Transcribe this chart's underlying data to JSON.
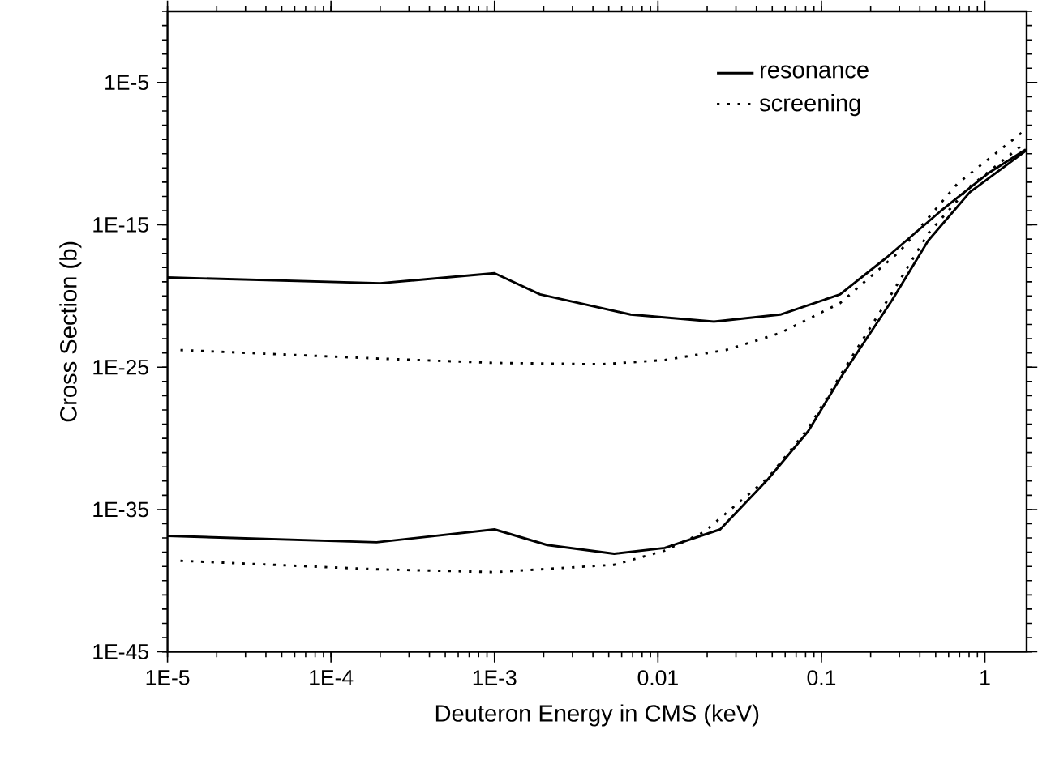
{
  "chart_data": {
    "type": "line",
    "xlabel": "Deuteron Energy in CMS (keV)",
    "ylabel": "Cross Section (b)",
    "log": "xy",
    "legend": "top right",
    "grid": false,
    "marker": "none",
    "xlim": [
      1e-05,
      1.8
    ],
    "ylim": [
      1e-45,
      1
    ],
    "xticks": [
      {
        "value": 1e-05,
        "label": "1E-5"
      },
      {
        "value": 0.0001,
        "label": "1E-4"
      },
      {
        "value": 0.001,
        "label": "1E-3"
      },
      0.01,
      0.1,
      1
    ],
    "yticks": [
      {
        "value": 1e-45,
        "label": "1E-45"
      },
      {
        "value": 1e-35,
        "label": "1E-35"
      },
      {
        "value": 1e-25,
        "label": "1E-25"
      },
      {
        "value": 1e-15,
        "label": "1E-15"
      },
      {
        "value": 1e-05,
        "label": "1E-5"
      }
    ],
    "series": [
      {
        "name": "resonance",
        "color": "#000000",
        "line_style": "solid",
        "x": [
          1e-05,
          0.0002,
          0.001,
          0.0019,
          0.0068,
          0.022,
          0.056,
          0.13,
          0.25,
          0.54,
          1.04,
          1.78
        ],
        "values": [
          2e-19,
          7.9e-20,
          4e-19,
          1.3e-20,
          5e-22,
          1.6e-22,
          5e-22,
          1.3e-20,
          5e-18,
          1e-14,
          4e-12,
          2e-10
        ]
      },
      {
        "color": "#000000",
        "line_style": "solid",
        "x": [
          1e-05,
          0.00019,
          0.001,
          0.0021,
          0.0054,
          0.011,
          0.024,
          0.047,
          0.083,
          0.13,
          0.27,
          0.45,
          0.81,
          1.78
        ],
        "values": [
          1.4e-37,
          5e-38,
          4e-37,
          3.2e-38,
          7.9e-39,
          2e-38,
          4e-37,
          1.3e-33,
          3.2e-30,
          1.6e-26,
          5e-21,
          7.9e-17,
          2e-13,
          1.6e-10
        ]
      },
      {
        "name": "screening",
        "color": "#000000",
        "line_style": "dotted",
        "x": [
          1.2e-05,
          0.0002,
          0.001,
          0.0045,
          0.011,
          0.026,
          0.056,
          0.13,
          0.3,
          0.68,
          1.78
        ],
        "values": [
          1.6e-24,
          4e-25,
          2e-25,
          1.6e-25,
          3.2e-25,
          1.6e-24,
          2.5e-23,
          3.2e-21,
          1.3e-17,
          7.9e-13,
          5e-09
        ]
      },
      {
        "color": "#000000",
        "line_style": "dotted",
        "x": [
          1.2e-05,
          0.00019,
          0.001,
          0.0054,
          0.011,
          0.019,
          0.047,
          0.083,
          0.14,
          0.27,
          0.45,
          0.81,
          1.78
        ],
        "values": [
          2.5e-39,
          6.3e-40,
          4e-40,
          1.3e-39,
          1.3e-38,
          2.5e-37,
          1.6e-33,
          5e-30,
          1e-25,
          1.6e-20,
          2.5e-16,
          5e-13,
          6.3e-10
        ]
      }
    ]
  }
}
